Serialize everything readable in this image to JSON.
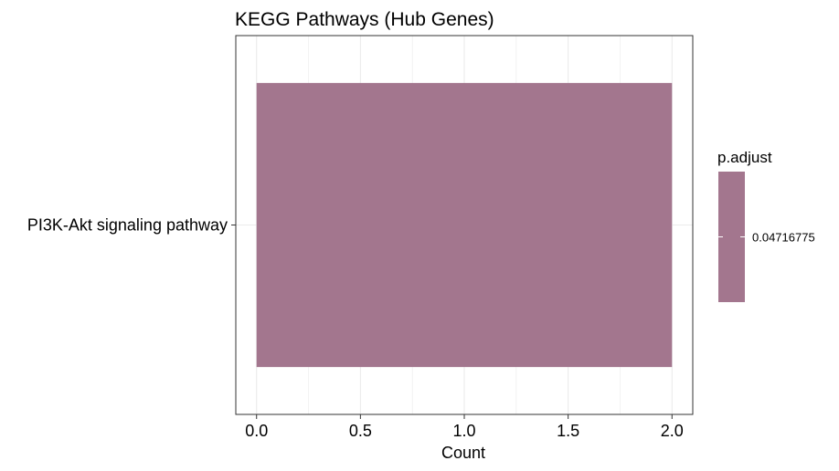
{
  "colors": {
    "bar": "#a3768e",
    "grid": "#ebebeb",
    "panel_border": "#333333",
    "legend_fill": "#a3768e",
    "text": "#000000"
  },
  "chart_data": {
    "type": "bar",
    "orientation": "horizontal",
    "title": "KEGG Pathways (Hub Genes)",
    "xlabel": "Count",
    "ylabel": "",
    "categories": [
      "PI3K-Akt signaling pathway"
    ],
    "values": [
      2
    ],
    "xlim": [
      -0.1,
      2.1
    ],
    "xticks": [
      0.0,
      0.5,
      1.0,
      1.5,
      2.0
    ],
    "xtick_labels": [
      "0.0",
      "0.5",
      "1.0",
      "1.5",
      "2.0"
    ],
    "grid": true,
    "legend": {
      "title": "p.adjust",
      "position": "right",
      "values": [
        "0.04716775"
      ]
    }
  }
}
